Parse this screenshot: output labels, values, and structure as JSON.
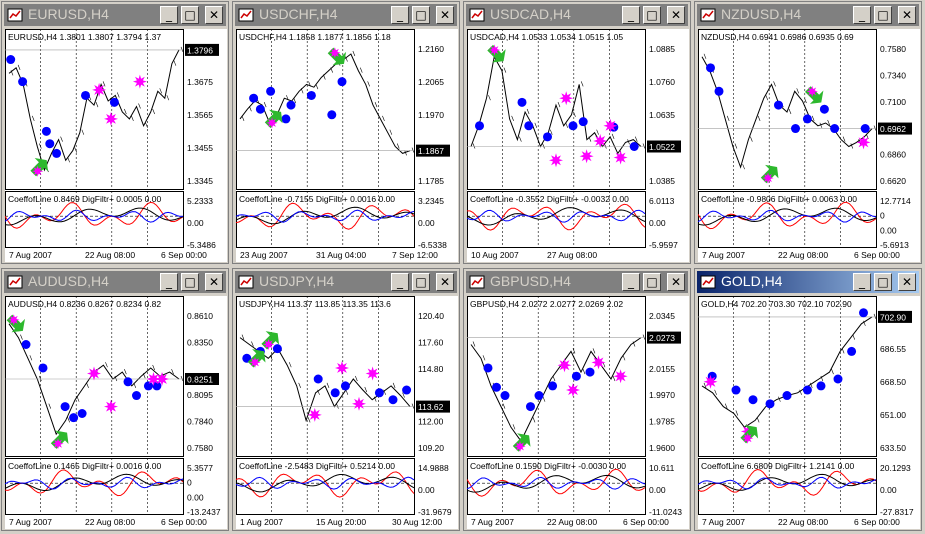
{
  "windows": [
    {
      "title": "EURUSD,H4",
      "active": false,
      "header": "EURUSD,H4  1.3801 1.3807 1.3794 1.37",
      "price_ticks": [
        "1.3796",
        "1.3675",
        "1.3565",
        "1.3455",
        "1.3345"
      ],
      "current_price": "1.3796",
      "indicator_header": "CoeffofLine 0.8469  DigFiltr+ 0.0005 0.00",
      "ind_ticks": [
        "5.2333",
        "0.00",
        "-5.3486"
      ],
      "dates": [
        "7 Aug 2007",
        "22 Aug 08:00",
        "6 Sep 00:00"
      ],
      "chart_data": {
        "type": "line",
        "y_labels": [
          "1.3796",
          "1.3675",
          "1.3565",
          "1.3455",
          "1.3345"
        ],
        "price": [
          0.22,
          0.18,
          0.3,
          0.55,
          0.75,
          0.92,
          0.8,
          0.7,
          0.85,
          0.78,
          0.65,
          0.4,
          0.45,
          0.3,
          0.42,
          0.38,
          0.5,
          0.55,
          0.46,
          0.6,
          0.5,
          0.35,
          0.4,
          0.15,
          0.05
        ],
        "blue_dots": [
          [
            0.01,
            0.12
          ],
          [
            0.08,
            0.28
          ],
          [
            0.22,
            0.64
          ],
          [
            0.24,
            0.73
          ],
          [
            0.28,
            0.8
          ],
          [
            0.45,
            0.38
          ],
          [
            0.62,
            0.43
          ]
        ],
        "pink_stars": [
          [
            0.53,
            0.34
          ],
          [
            0.6,
            0.55
          ],
          [
            0.77,
            0.28
          ]
        ],
        "up_arrows": [
          [
            0.18,
            0.9
          ]
        ],
        "down_arrows": []
      }
    },
    {
      "title": "USDCHF,H4",
      "active": false,
      "header": "USDCHF,H4  1.1858 1.1877 1.1856 1.18",
      "price_ticks": [
        "1.2160",
        "1.2065",
        "1.1970",
        "1.1867",
        "1.1785"
      ],
      "current_price": "1.1867",
      "indicator_header": "CoeffofLine -0.7155  DigFiltr+ 0.0016 0.00",
      "ind_ticks": [
        "3.2345",
        "0.00",
        "-6.5338"
      ],
      "dates": [
        "23 Aug 2007",
        "31 Aug 04:00",
        "7 Sep 12:00"
      ],
      "chart_data": {
        "type": "line",
        "y_labels": [
          "1.2160",
          "1.2065",
          "1.1970",
          "1.1867",
          "1.1785"
        ],
        "price": [
          0.55,
          0.48,
          0.42,
          0.45,
          0.58,
          0.52,
          0.4,
          0.42,
          0.35,
          0.3,
          0.32,
          0.25,
          0.2,
          0.15,
          0.12,
          0.08,
          0.2,
          0.3,
          0.45,
          0.55,
          0.65,
          0.75,
          0.8,
          0.78
        ],
        "blue_dots": [
          [
            0.08,
            0.4
          ],
          [
            0.12,
            0.48
          ],
          [
            0.18,
            0.35
          ],
          [
            0.27,
            0.55
          ],
          [
            0.3,
            0.45
          ],
          [
            0.42,
            0.38
          ],
          [
            0.54,
            0.52
          ],
          [
            0.6,
            0.28
          ]
        ],
        "pink_stars": [],
        "up_arrows": [
          [
            0.2,
            0.55
          ]
        ],
        "down_arrows": [
          [
            0.57,
            0.1
          ]
        ]
      }
    },
    {
      "title": "USDCAD,H4",
      "active": false,
      "header": "USDCAD,H4  1.0533 1.0534 1.0515 1.05",
      "price_ticks": [
        "1.0885",
        "1.0760",
        "1.0635",
        "1.0522",
        "1.0385"
      ],
      "current_price": "1.0522",
      "indicator_header": "CoeffofLine -0.3552  DigFiltr+ -0.0032 0.00",
      "ind_ticks": [
        "6.0113",
        "0.00",
        "-5.9597"
      ],
      "dates": [
        "10 Aug 2007",
        "27 Aug 08:00"
      ],
      "chart_data": {
        "type": "line",
        "y_labels": [
          "1.0885",
          "1.0760",
          "1.0635",
          "1.0522",
          "1.0385"
        ],
        "price": [
          0.75,
          0.6,
          0.4,
          0.1,
          0.2,
          0.55,
          0.7,
          0.5,
          0.6,
          0.75,
          0.65,
          0.45,
          0.6,
          0.52,
          0.3,
          0.7,
          0.65,
          0.75,
          0.68,
          0.8,
          0.72,
          0.7,
          0.75
        ],
        "blue_dots": [
          [
            0.05,
            0.6
          ],
          [
            0.3,
            0.43
          ],
          [
            0.34,
            0.6
          ],
          [
            0.45,
            0.68
          ],
          [
            0.6,
            0.6
          ],
          [
            0.66,
            0.57
          ],
          [
            0.84,
            0.61
          ],
          [
            0.96,
            0.75
          ]
        ],
        "pink_stars": [
          [
            0.5,
            0.85
          ],
          [
            0.56,
            0.4
          ],
          [
            0.68,
            0.82
          ],
          [
            0.76,
            0.71
          ],
          [
            0.82,
            0.6
          ],
          [
            0.88,
            0.83
          ]
        ],
        "up_arrows": [],
        "down_arrows": [
          [
            0.15,
            0.08
          ]
        ]
      }
    },
    {
      "title": "NZDUSD,H4",
      "active": false,
      "header": "NZDUSD,H4  0.6941 0.6986 0.6935 0.69",
      "price_ticks": [
        "0.7580",
        "0.7340",
        "0.7100",
        "0.6962",
        "0.6860",
        "0.6620"
      ],
      "current_price": "0.6962",
      "indicator_header": "CoeffofLine -0.9806  DigFiltr+ 0.0063 0.00",
      "ind_ticks": [
        "12.7714",
        "0",
        "0.00",
        "-5.6913"
      ],
      "dates": [
        "7 Aug 2007",
        "22 Aug 08:00",
        "6 Sep 00:00"
      ],
      "chart_data": {
        "type": "line",
        "y_labels": [
          "0.7580",
          "0.7340",
          "0.7100",
          "0.6962",
          "0.6860",
          "0.6620"
        ],
        "price": [
          0.1,
          0.2,
          0.35,
          0.55,
          0.75,
          0.9,
          0.7,
          0.55,
          0.4,
          0.3,
          0.45,
          0.5,
          0.35,
          0.42,
          0.55,
          0.6,
          0.58,
          0.62,
          0.7,
          0.75,
          0.72,
          0.68,
          0.62
        ],
        "blue_dots": [
          [
            0.05,
            0.18
          ],
          [
            0.1,
            0.35
          ],
          [
            0.45,
            0.45
          ],
          [
            0.55,
            0.62
          ],
          [
            0.62,
            0.55
          ],
          [
            0.72,
            0.48
          ],
          [
            0.78,
            0.62
          ],
          [
            0.96,
            0.62
          ]
        ],
        "pink_stars": [
          [
            0.95,
            0.72
          ]
        ],
        "up_arrows": [
          [
            0.4,
            0.95
          ]
        ],
        "down_arrows": [
          [
            0.66,
            0.38
          ]
        ]
      }
    },
    {
      "title": "AUDUSD,H4",
      "active": false,
      "header": "AUDUSD,H4  0.8236 0.8267 0.8234 0.82",
      "price_ticks": [
        "0.8610",
        "0.8350",
        "0.8251",
        "0.8095",
        "0.7840",
        "0.7580"
      ],
      "current_price": "0.8251",
      "indicator_header": "CoeffofLine 0.1465  DigFiltr+ 0.0016 0.00",
      "ind_ticks": [
        "5.3577",
        "0",
        "0.00",
        "-13.2437"
      ],
      "dates": [
        "7 Aug 2007",
        "22 Aug 08:00",
        "6 Sep 00:00"
      ],
      "chart_data": {
        "type": "line",
        "y_labels": [
          "0.8610",
          "0.8350",
          "0.8251",
          "0.8095",
          "0.7840",
          "0.7580"
        ],
        "price": [
          0.1,
          0.2,
          0.35,
          0.5,
          0.7,
          0.9,
          0.8,
          0.65,
          0.55,
          0.45,
          0.4,
          0.5,
          0.45,
          0.55,
          0.48,
          0.42,
          0.48,
          0.45,
          0.5
        ],
        "blue_dots": [
          [
            0.1,
            0.25
          ],
          [
            0.2,
            0.42
          ],
          [
            0.33,
            0.7
          ],
          [
            0.38,
            0.78
          ],
          [
            0.43,
            0.75
          ],
          [
            0.7,
            0.52
          ],
          [
            0.75,
            0.62
          ],
          [
            0.82,
            0.55
          ],
          [
            0.87,
            0.55
          ]
        ],
        "pink_stars": [
          [
            0.5,
            0.46
          ],
          [
            0.6,
            0.7
          ],
          [
            0.85,
            0.5
          ],
          [
            0.9,
            0.5
          ]
        ],
        "up_arrows": [
          [
            0.3,
            0.94
          ]
        ],
        "down_arrows": [
          [
            0.04,
            0.1
          ]
        ]
      }
    },
    {
      "title": "USDJPY,H4",
      "active": false,
      "header": "USDJPY,H4  113.37 113.85 113.35 113.6",
      "price_ticks": [
        "120.40",
        "117.60",
        "114.80",
        "113.62",
        "112.00",
        "109.20"
      ],
      "current_price": "113.62",
      "indicator_header": "CoeffofLine -2.5483  DigFiltr+ 0.5214 0.00",
      "ind_ticks": [
        "14.9888",
        "0.00",
        "-31.9679"
      ],
      "dates": [
        "1 Aug 2007",
        "15 Aug 20:00",
        "30 Aug 12:00"
      ],
      "chart_data": {
        "type": "line",
        "y_labels": [
          "120.40",
          "117.60",
          "114.80",
          "113.62",
          "112.00",
          "109.20"
        ],
        "price": [
          0.2,
          0.25,
          0.3,
          0.35,
          0.28,
          0.4,
          0.55,
          0.8,
          0.6,
          0.55,
          0.7,
          0.6,
          0.5,
          0.58,
          0.65,
          0.6,
          0.55,
          0.62,
          0.7
        ],
        "blue_dots": [
          [
            0.04,
            0.35
          ],
          [
            0.12,
            0.3
          ],
          [
            0.22,
            0.28
          ],
          [
            0.46,
            0.5
          ],
          [
            0.56,
            0.6
          ],
          [
            0.62,
            0.55
          ],
          [
            0.82,
            0.6
          ],
          [
            0.9,
            0.65
          ],
          [
            0.98,
            0.58
          ]
        ],
        "pink_stars": [
          [
            0.44,
            0.76
          ],
          [
            0.6,
            0.42
          ],
          [
            0.7,
            0.68
          ],
          [
            0.78,
            0.46
          ]
        ],
        "up_arrows": [
          [
            0.1,
            0.35
          ],
          [
            0.18,
            0.22
          ]
        ],
        "down_arrows": []
      }
    },
    {
      "title": "GBPUSD,H4",
      "active": false,
      "header": "GBPUSD,H4  2.0272 2.0277 2.0269 2.02",
      "price_ticks": [
        "2.0345",
        "2.0273",
        "2.0155",
        "1.9970",
        "1.9785",
        "1.9600"
      ],
      "current_price": "2.0273",
      "indicator_header": "CoeffofLine 0.1590  DigFiltr+ -0.0030 0.00",
      "ind_ticks": [
        "10.611",
        "0.00",
        "-11.0243"
      ],
      "dates": [
        "7 Aug 2007",
        "22 Aug 08:00",
        "6 Sep 00:00"
      ],
      "chart_data": {
        "type": "line",
        "y_labels": [
          "2.0345",
          "2.0273",
          "2.0155",
          "1.9970",
          "1.9785",
          "1.9600"
        ],
        "price": [
          0.25,
          0.35,
          0.55,
          0.7,
          0.85,
          0.95,
          0.8,
          0.65,
          0.5,
          0.4,
          0.3,
          0.45,
          0.3,
          0.4,
          0.5,
          0.35,
          0.25,
          0.2
        ],
        "blue_dots": [
          [
            0.1,
            0.42
          ],
          [
            0.15,
            0.56
          ],
          [
            0.2,
            0.62
          ],
          [
            0.35,
            0.7
          ],
          [
            0.4,
            0.62
          ],
          [
            0.48,
            0.55
          ],
          [
            0.62,
            0.48
          ],
          [
            0.7,
            0.45
          ]
        ],
        "pink_stars": [
          [
            0.55,
            0.4
          ],
          [
            0.6,
            0.58
          ],
          [
            0.75,
            0.38
          ],
          [
            0.88,
            0.48
          ]
        ],
        "up_arrows": [
          [
            0.3,
            0.96
          ]
        ],
        "down_arrows": []
      }
    },
    {
      "title": "GOLD,H4",
      "active": true,
      "header": "GOLD,H4  702.20 703.30 702.10 702.90",
      "price_ticks": [
        "702.90",
        "686.55",
        "668.50",
        "651.00",
        "633.50"
      ],
      "current_price": "702.90",
      "indicator_header": "CoeffofLine 6.6809  DigFiltr+ 1.2141 0.00",
      "ind_ticks": [
        "20.1293",
        "0.00",
        "-27.8317"
      ],
      "dates": [
        "7 Aug 2007",
        "22 Aug 08:00",
        "6 Sep 00:00"
      ],
      "chart_data": {
        "type": "line",
        "y_labels": [
          "702.90",
          "686.55",
          "668.50",
          "651.00",
          "633.50"
        ],
        "price": [
          0.55,
          0.6,
          0.7,
          0.75,
          0.85,
          0.8,
          0.7,
          0.65,
          0.62,
          0.6,
          0.55,
          0.5,
          0.45,
          0.3,
          0.2,
          0.1,
          0.05
        ],
        "blue_dots": [
          [
            0.06,
            0.48
          ],
          [
            0.2,
            0.58
          ],
          [
            0.3,
            0.65
          ],
          [
            0.4,
            0.68
          ],
          [
            0.5,
            0.62
          ],
          [
            0.62,
            0.58
          ],
          [
            0.7,
            0.55
          ],
          [
            0.8,
            0.5
          ],
          [
            0.88,
            0.3
          ],
          [
            0.95,
            0.02
          ]
        ],
        "pink_stars": [
          [
            0.05,
            0.52
          ],
          [
            0.27,
            0.88
          ]
        ],
        "up_arrows": [
          [
            0.28,
            0.9
          ]
        ],
        "down_arrows": []
      }
    }
  ]
}
